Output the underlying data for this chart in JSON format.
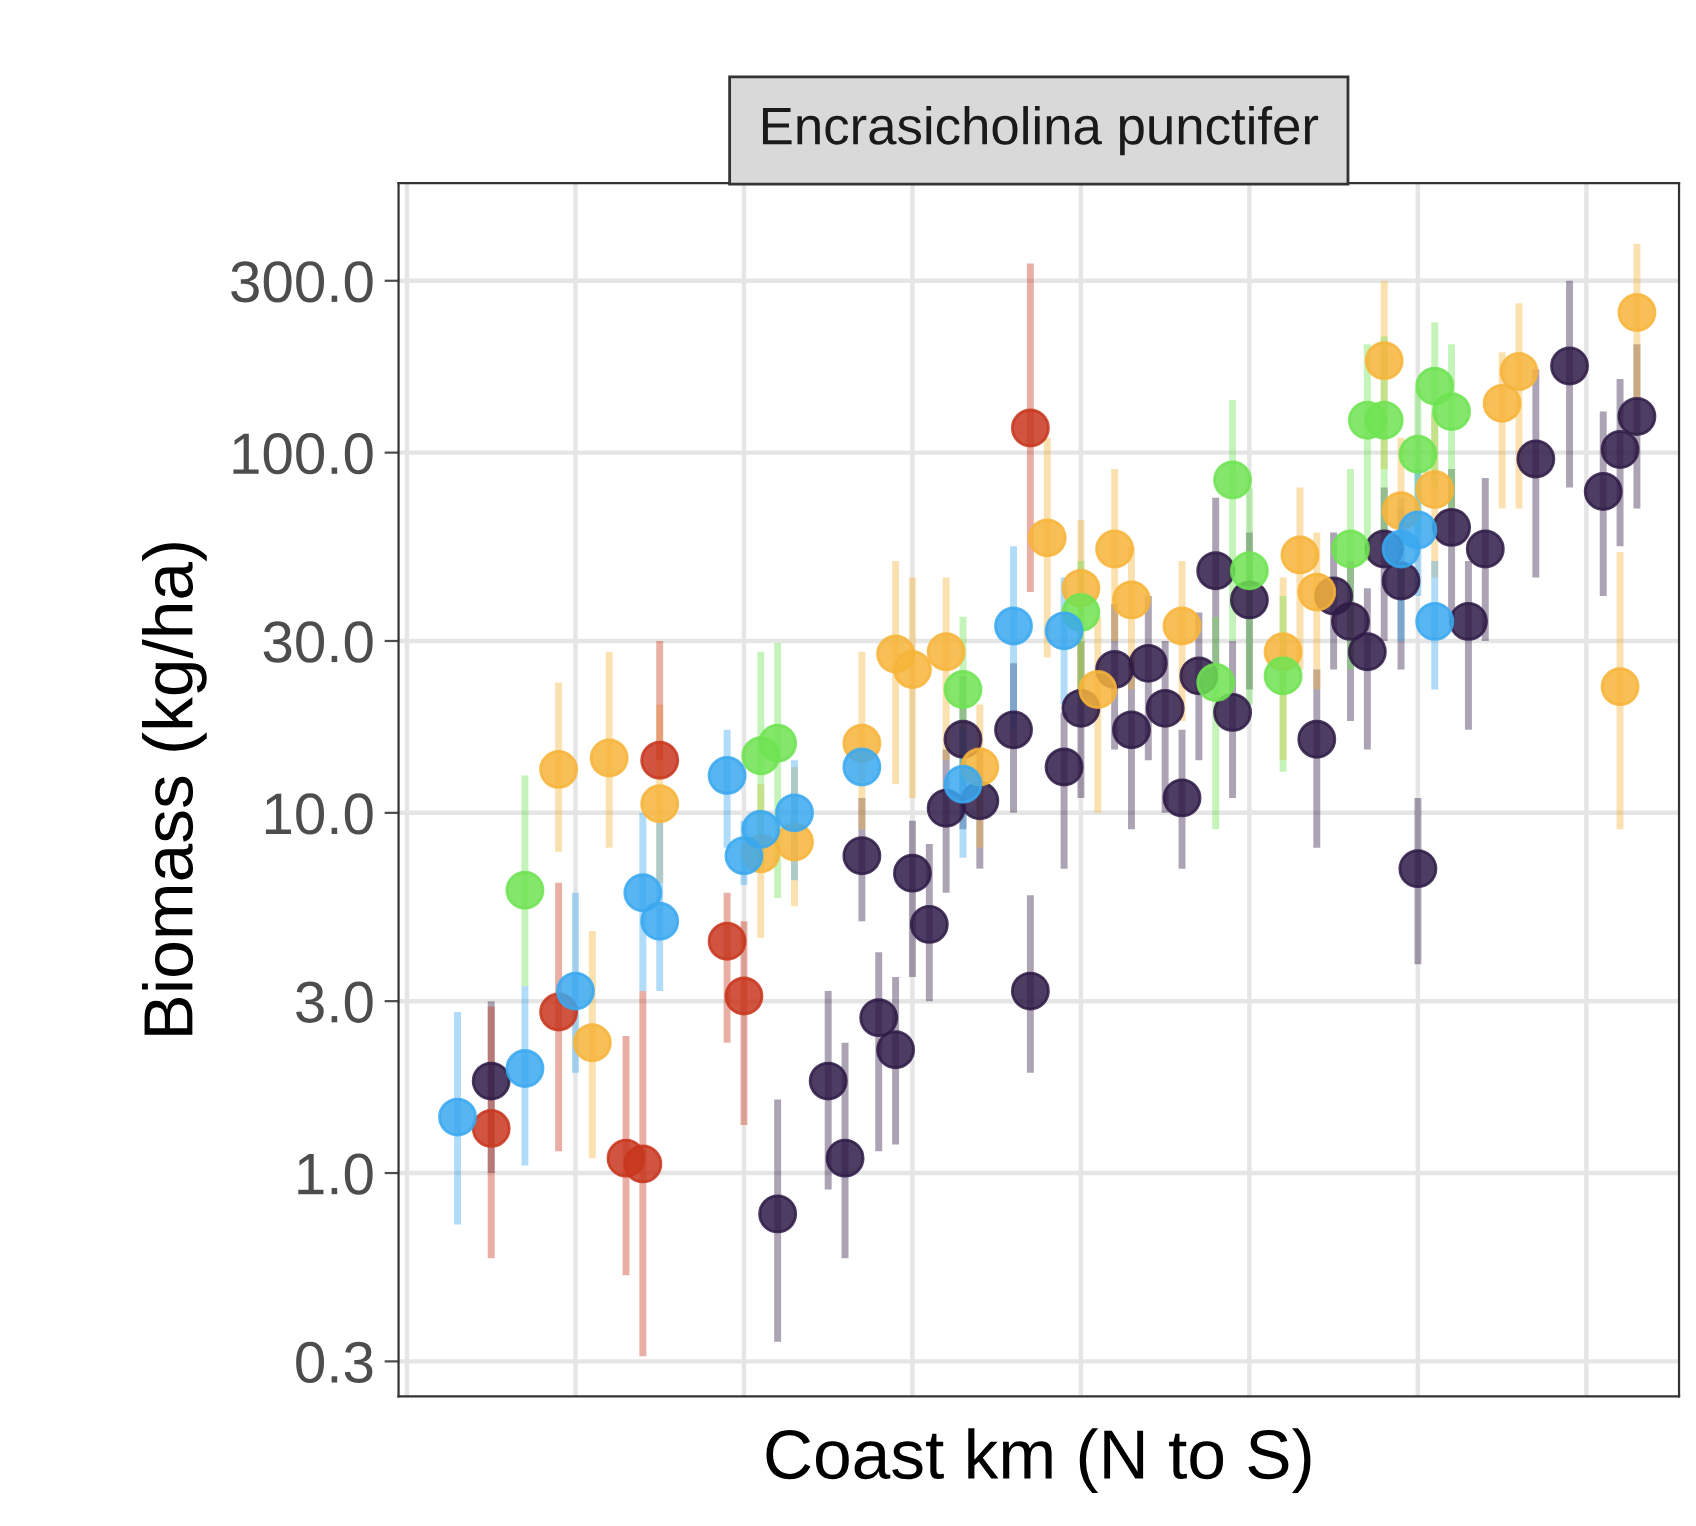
{
  "chart_data": {
    "type": "scatter",
    "title": "Encrasicholina punctifer",
    "xlabel": "Coast km (N to S)",
    "ylabel": "Biomass (kg/ha)",
    "log": "y",
    "grid": true,
    "legend": false,
    "marker": "circle",
    "ylim": [
      0.24,
      560
    ],
    "yticks": [
      {
        "value": 0.3,
        "label": "0.3"
      },
      {
        "value": 1,
        "label": "1.0"
      },
      {
        "value": 3,
        "label": "3.0"
      },
      {
        "value": 10,
        "label": "10.0"
      },
      {
        "value": 30,
        "label": "30.0"
      },
      {
        "value": 100,
        "label": "100.0"
      },
      {
        "value": 300,
        "label": "300.0"
      }
    ],
    "categories": [
      null,
      null,
      null,
      null,
      null,
      null,
      null,
      null,
      null,
      null,
      null,
      null,
      null,
      null,
      null,
      null,
      null,
      null,
      null,
      null,
      null,
      null,
      null,
      null,
      null,
      null,
      null,
      null,
      null,
      null,
      null,
      null,
      null,
      null,
      null,
      null,
      null,
      null,
      null,
      null,
      null,
      null,
      null,
      null,
      null,
      null,
      null,
      null,
      null,
      null,
      null,
      null,
      null,
      null,
      null,
      null,
      null,
      null,
      null,
      null,
      null,
      null,
      null,
      null,
      null,
      null,
      null,
      null,
      null,
      null,
      null,
      null,
      null,
      null,
      null,
      null
    ],
    "series": [
      {
        "color": "#3aa8f0",
        "values": [
          null,
          null,
          null,
          1.43,
          null,
          null,
          null,
          1.95,
          null,
          null,
          3.2,
          null,
          null,
          null,
          6,
          5,
          null,
          null,
          null,
          12.7,
          7.6,
          9,
          null,
          10,
          null,
          null,
          null,
          13.4,
          null,
          null,
          null,
          null,
          null,
          12,
          null,
          null,
          33,
          null,
          null,
          32,
          null,
          null,
          null,
          null,
          null,
          null,
          null,
          null,
          null,
          null,
          null,
          null,
          null,
          null,
          null,
          null,
          null,
          null,
          null,
          54,
          61,
          34,
          null,
          null,
          null,
          null,
          null,
          null,
          null,
          null,
          null,
          null,
          null,
          null,
          null,
          null
        ],
        "errors": [
          null,
          null,
          null,
          [
            0.72,
            2.8
          ],
          null,
          null,
          null,
          [
            1.05,
            3.3
          ],
          null,
          null,
          [
            1.9,
            6
          ],
          null,
          null,
          null,
          [
            3.2,
            10
          ],
          [
            3.2,
            9.4
          ],
          null,
          null,
          null,
          [
            8,
            17
          ],
          [
            6.3,
            9.5
          ],
          null,
          null,
          [
            6.5,
            14
          ],
          null,
          null,
          null,
          null,
          null,
          null,
          null,
          null,
          null,
          [
            7.5,
            17
          ],
          null,
          null,
          [
            17,
            55
          ],
          null,
          null,
          [
            20,
            45
          ],
          null,
          null,
          null,
          null,
          null,
          null,
          null,
          null,
          null,
          null,
          null,
          null,
          null,
          null,
          null,
          null,
          null,
          null,
          null,
          [
            30,
            75
          ],
          [
            40,
            90
          ],
          [
            22,
            50
          ],
          null,
          null,
          null,
          null,
          null,
          null,
          null,
          null,
          null,
          null,
          null,
          null,
          null,
          null
        ]
      },
      {
        "color": "#c8361d",
        "values": [
          null,
          null,
          null,
          null,
          null,
          1.33,
          null,
          null,
          null,
          2.8,
          null,
          null,
          null,
          1.1,
          1.06,
          14,
          null,
          null,
          null,
          4.4,
          3.1,
          null,
          null,
          null,
          null,
          null,
          null,
          null,
          null,
          null,
          null,
          null,
          null,
          null,
          null,
          null,
          null,
          117,
          null,
          null,
          null,
          null,
          null,
          null,
          null,
          null,
          null,
          null,
          null,
          null,
          null,
          null,
          null,
          null,
          null,
          null,
          null,
          null,
          null,
          null,
          null,
          null,
          null,
          null,
          null,
          null,
          null,
          null,
          null,
          null,
          null,
          null,
          null,
          null,
          null,
          null
        ],
        "errors": [
          null,
          null,
          null,
          null,
          null,
          [
            0.58,
            2.9
          ],
          null,
          null,
          null,
          [
            1.15,
            6.4
          ],
          null,
          null,
          null,
          [
            0.52,
            2.4
          ],
          [
            0.31,
            3.2
          ],
          [
            14,
            30
          ],
          null,
          null,
          null,
          [
            2.3,
            6
          ],
          [
            1.36,
            5
          ],
          null,
          null,
          null,
          null,
          null,
          null,
          null,
          null,
          null,
          null,
          null,
          null,
          null,
          null,
          null,
          null,
          [
            41,
            335
          ],
          null,
          null,
          null,
          null,
          null,
          null,
          null,
          null,
          null,
          null,
          null,
          null,
          null,
          null,
          null,
          null,
          null,
          null,
          null,
          null,
          null,
          null,
          null,
          null,
          null,
          null,
          null,
          null,
          null,
          null,
          null,
          null,
          null,
          null,
          null,
          null,
          null,
          null
        ]
      },
      {
        "color": "#6fe352",
        "values": [
          null,
          null,
          null,
          null,
          null,
          null,
          null,
          6.1,
          null,
          null,
          null,
          null,
          null,
          null,
          null,
          null,
          null,
          null,
          null,
          null,
          null,
          14.4,
          15.6,
          null,
          null,
          null,
          null,
          null,
          null,
          null,
          null,
          null,
          null,
          22,
          null,
          null,
          null,
          null,
          null,
          null,
          36,
          null,
          null,
          null,
          null,
          null,
          null,
          null,
          23,
          84,
          47,
          null,
          24,
          null,
          null,
          null,
          54,
          123,
          123,
          null,
          99,
          153,
          130,
          null,
          null,
          null,
          null,
          null,
          null,
          null,
          null,
          null,
          null,
          null,
          null,
          null
        ],
        "errors": [
          null,
          null,
          null,
          null,
          null,
          null,
          null,
          [
            3.3,
            12.7
          ],
          null,
          null,
          null,
          null,
          null,
          null,
          null,
          null,
          null,
          null,
          null,
          null,
          null,
          [
            7,
            28
          ],
          [
            5.8,
            29.6
          ],
          null,
          null,
          null,
          null,
          null,
          null,
          null,
          null,
          null,
          null,
          [
            12,
            35
          ],
          null,
          null,
          null,
          null,
          null,
          null,
          [
            20,
            50
          ],
          null,
          null,
          null,
          null,
          null,
          null,
          null,
          [
            9,
            35
          ],
          [
            30,
            140
          ],
          [
            20,
            80
          ],
          null,
          [
            13,
            40
          ],
          null,
          null,
          null,
          [
            25,
            90
          ],
          [
            50,
            200
          ],
          [
            60,
            210
          ],
          null,
          [
            60,
            150
          ],
          [
            80,
            230
          ],
          [
            70,
            200
          ],
          null,
          null,
          null,
          null,
          null,
          null,
          null,
          null,
          null,
          null,
          null,
          null,
          null
        ]
      },
      {
        "color": "#f7b43a",
        "values": [
          null,
          null,
          null,
          null,
          null,
          null,
          null,
          null,
          null,
          13.2,
          null,
          2.3,
          14.2,
          null,
          null,
          10.6,
          null,
          null,
          null,
          null,
          null,
          7.7,
          null,
          8.3,
          null,
          null,
          null,
          15.6,
          null,
          27.6,
          25,
          null,
          28,
          null,
          13.4,
          null,
          null,
          null,
          58,
          null,
          42,
          22,
          54,
          39,
          null,
          null,
          33,
          null,
          null,
          null,
          null,
          null,
          28,
          52,
          41,
          null,
          null,
          null,
          180,
          69,
          null,
          79,
          null,
          null,
          null,
          137,
          168,
          null,
          null,
          null,
          null,
          null,
          22.4,
          245,
          null,
          null
        ],
        "errors": [
          null,
          null,
          null,
          null,
          null,
          null,
          null,
          null,
          null,
          [
            7.8,
            23
          ],
          null,
          [
            1.1,
            4.7
          ],
          [
            8,
            28
          ],
          null,
          null,
          [
            6.4,
            20
          ],
          null,
          null,
          null,
          null,
          null,
          [
            4.5,
            12
          ],
          null,
          [
            5.5,
            13.4
          ],
          null,
          null,
          null,
          [
            9,
            28
          ],
          null,
          [
            12,
            50
          ],
          [
            11,
            45
          ],
          null,
          [
            14,
            45
          ],
          null,
          [
            8,
            20
          ],
          null,
          null,
          null,
          [
            27,
            110
          ],
          null,
          [
            22,
            65
          ],
          [
            10,
            35
          ],
          [
            30,
            90
          ],
          [
            22,
            55
          ],
          null,
          null,
          [
            18,
            50
          ],
          null,
          null,
          null,
          null,
          null,
          [
            14,
            45
          ],
          [
            25,
            80
          ],
          [
            22,
            60
          ],
          null,
          null,
          null,
          [
            90,
            300
          ],
          [
            40,
            110
          ],
          null,
          [
            45,
            130
          ],
          null,
          null,
          null,
          [
            70,
            190
          ],
          [
            70,
            260
          ],
          null,
          null,
          null,
          null,
          null,
          [
            9,
            53
          ],
          [
            140,
            380
          ],
          null,
          null
        ]
      },
      {
        "color": "#2f1b47",
        "values": [
          null,
          null,
          null,
          null,
          null,
          1.8,
          null,
          null,
          null,
          null,
          null,
          null,
          null,
          null,
          null,
          null,
          null,
          null,
          null,
          null,
          null,
          null,
          0.77,
          null,
          null,
          1.8,
          1.1,
          7.6,
          2.7,
          2.2,
          6.8,
          4.9,
          10.3,
          16,
          10.8,
          null,
          17,
          3.2,
          null,
          13.4,
          19.5,
          null,
          25,
          17,
          26,
          19.5,
          11,
          24,
          47,
          19,
          39,
          null,
          null,
          null,
          16,
          40,
          34,
          28,
          54,
          44,
          7,
          null,
          62,
          34,
          54,
          null,
          null,
          96,
          null,
          174,
          null,
          78,
          102,
          126,
          null,
          null
        ],
        "errors": [
          null,
          null,
          null,
          null,
          null,
          [
            1.0,
            3
          ],
          null,
          null,
          null,
          null,
          null,
          null,
          null,
          null,
          null,
          null,
          null,
          null,
          null,
          null,
          null,
          null,
          [
            0.34,
            1.6
          ],
          null,
          null,
          [
            0.9,
            3.2
          ],
          [
            0.58,
            2.3
          ],
          [
            5,
            11
          ],
          [
            1.15,
            4.1
          ],
          [
            1.2,
            3.5
          ],
          [
            3.5,
            9.5
          ],
          [
            3,
            8.2
          ],
          [
            6,
            15
          ],
          [
            9,
            24
          ],
          [
            7,
            15
          ],
          null,
          [
            10,
            26
          ],
          [
            1.9,
            5.9
          ],
          null,
          [
            7,
            19
          ],
          [
            11,
            30
          ],
          null,
          [
            15,
            38
          ],
          [
            9,
            27
          ],
          [
            14,
            40
          ],
          [
            10,
            30
          ],
          [
            7,
            17
          ],
          [
            14,
            36
          ],
          [
            25,
            75
          ],
          [
            11,
            30
          ],
          [
            22,
            60
          ],
          null,
          null,
          null,
          [
            8,
            25
          ],
          [
            25,
            60
          ],
          [
            18,
            50
          ],
          [
            15,
            42
          ],
          [
            30,
            80
          ],
          [
            25,
            70
          ],
          [
            3.8,
            11
          ],
          null,
          [
            35,
            90
          ],
          [
            17,
            50
          ],
          [
            30,
            85
          ],
          null,
          null,
          [
            45,
            170
          ],
          null,
          [
            80,
            300
          ],
          null,
          [
            40,
            130
          ],
          [
            55,
            160
          ],
          [
            70,
            200
          ],
          null,
          null
        ]
      }
    ]
  }
}
